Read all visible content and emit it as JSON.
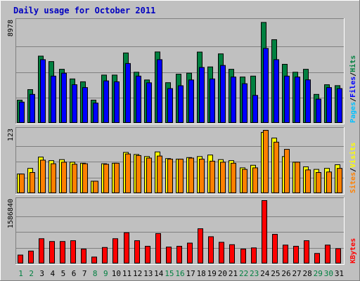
{
  "chart_data": {
    "type": "bar",
    "title": "Daily usage for October 2011",
    "categories": [
      "1",
      "2",
      "3",
      "4",
      "5",
      "6",
      "7",
      "8",
      "9",
      "10",
      "11",
      "12",
      "13",
      "14",
      "15",
      "16",
      "17",
      "18",
      "19",
      "20",
      "21",
      "22",
      "23",
      "24",
      "25",
      "26",
      "27",
      "28",
      "29",
      "30",
      "31"
    ],
    "weekend_days": [
      "1",
      "2",
      "8",
      "9",
      "15",
      "16",
      "22",
      "23",
      "29",
      "30"
    ],
    "panels": [
      {
        "id": "hits",
        "ymax_label": "8978",
        "ymax": 8978,
        "legend": [
          {
            "label": "Pages",
            "color": "#00c0ff"
          },
          {
            "label": "Files",
            "color": "#0000ff"
          },
          {
            "label": "Hits",
            "color": "#008040"
          }
        ],
        "series": [
          {
            "name": "Hits",
            "color": "#008040",
            "values": [
              2040,
              2970,
              5920,
              5440,
              4760,
              3910,
              3660,
              2040,
              4250,
              4250,
              6200,
              4500,
              3820,
              6290,
              3580,
              4330,
              4420,
              6280,
              4970,
              6120,
              4760,
              4080,
              4160,
              8890,
              7370,
              5200,
              4500,
              4760,
              2550,
              3400,
              3320
            ]
          },
          {
            "name": "Files",
            "color": "#0000ff",
            "values": [
              1870,
              2550,
              5610,
              4160,
              4420,
              3400,
              3150,
              1780,
              3740,
              3660,
              5270,
              4160,
              3570,
              5610,
              3060,
              3310,
              3820,
              4920,
              3910,
              5100,
              4080,
              3490,
              2460,
              6600,
              5610,
              4160,
              4080,
              3830,
              2130,
              3150,
              3060
            ]
          }
        ]
      },
      {
        "id": "visits",
        "ymax_label": "123",
        "ymax": 123,
        "legend": [
          {
            "label": "Sites",
            "color": "#ff8000"
          },
          {
            "label": "Visits",
            "color": "#ffff00"
          }
        ],
        "series": [
          {
            "name": "Visits",
            "color": "#ffff00",
            "values": [
              38,
              49,
              71,
              64,
              66,
              61,
              59,
              24,
              58,
              59,
              80,
              76,
              72,
              81,
              68,
              67,
              70,
              72,
              75,
              66,
              64,
              50,
              55,
              119,
              108,
              72,
              61,
              52,
              47,
              49,
              56
            ]
          },
          {
            "name": "Sites",
            "color": "#ff8000",
            "values": [
              38,
              41,
              65,
              58,
              61,
              57,
              58,
              24,
              57,
              59,
              77,
              74,
              69,
              73,
              67,
              67,
              69,
              67,
              63,
              61,
              59,
              47,
              50,
              123,
              100,
              86,
              61,
              46,
              41,
              42,
              49
            ]
          }
        ]
      },
      {
        "id": "kbytes",
        "ymax_label": "1586840",
        "ymax": 1586840,
        "legend": [
          {
            "label": "KBytes",
            "color": "#ff0000"
          }
        ],
        "series": [
          {
            "name": "KBytes",
            "color": "#ff0000",
            "values": [
              220000,
              320000,
              630000,
              560000,
              560000,
              580000,
              370000,
              170000,
              410000,
              630000,
              780000,
              580000,
              440000,
              760000,
              420000,
              440000,
              520000,
              880000,
              680000,
              540000,
              480000,
              370000,
              400000,
              1586840,
              740000,
              470000,
              440000,
              580000,
              260000,
              470000,
              380000
            ]
          }
        ]
      }
    ]
  }
}
